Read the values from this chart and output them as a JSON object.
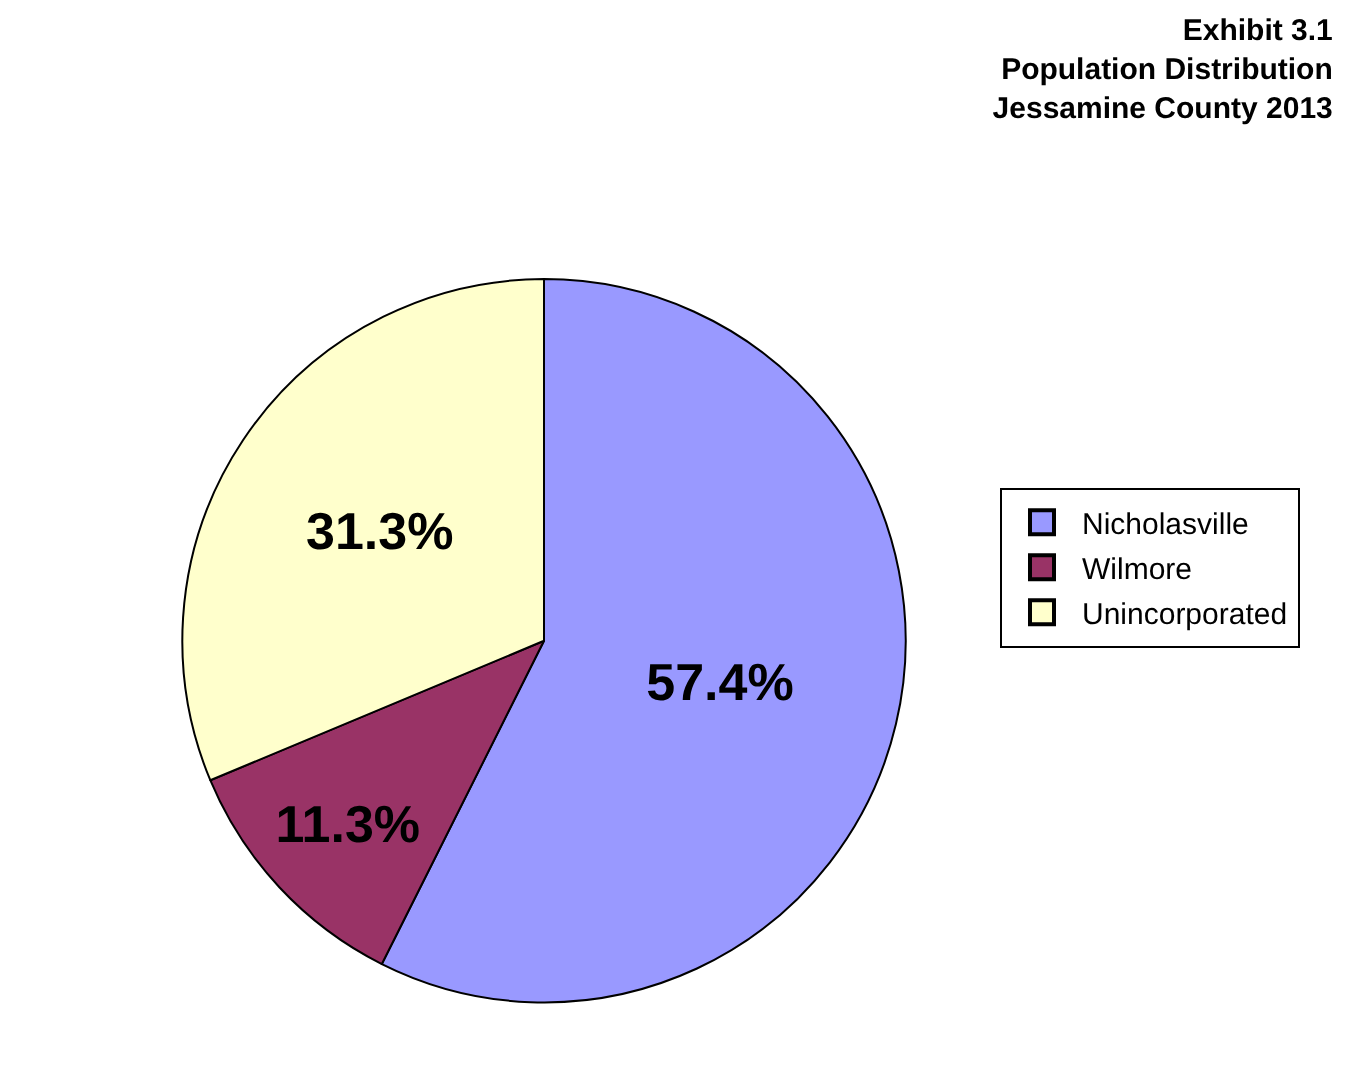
{
  "chart_data": {
    "type": "pie",
    "title": "Exhibit 3.1\nPopulation Distribution\nJessamine County 2013",
    "categories": [
      "Nicholasville",
      "Wilmore",
      "Unincorporated"
    ],
    "values": [
      57.4,
      11.3,
      31.3
    ],
    "value_labels": [
      "57.4%",
      "11.3%",
      "31.3%"
    ],
    "colors": [
      "#9999ff",
      "#993366",
      "#ffffcc"
    ],
    "legend": "right"
  }
}
